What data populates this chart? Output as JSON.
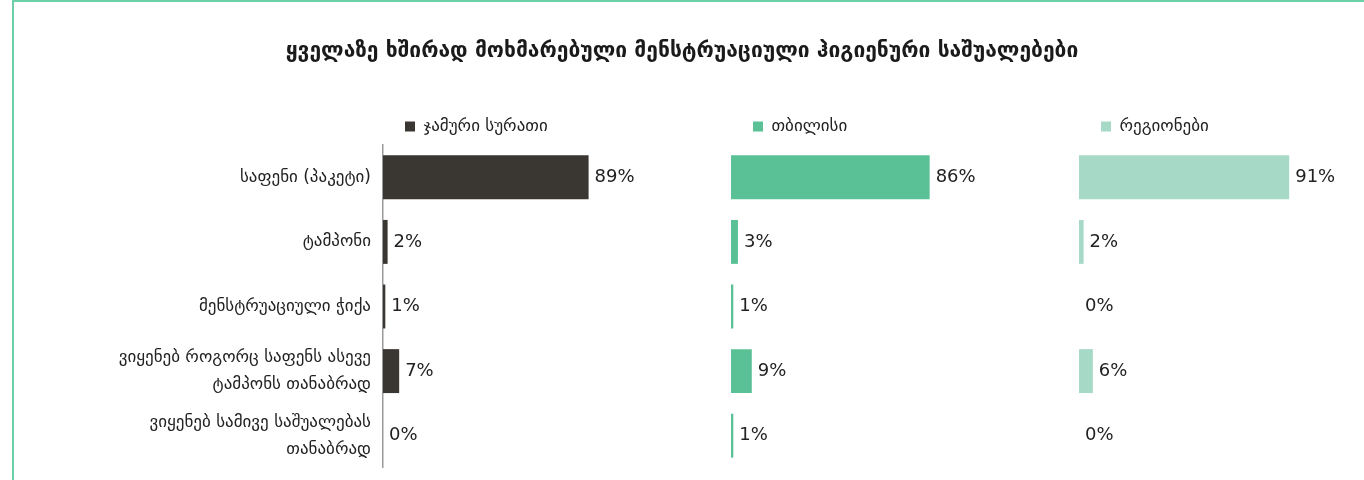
{
  "chart_data": [
    {
      "type": "bar",
      "orientation": "horizontal",
      "title": "ყველაზე ხშირად მოხმარებული  მენსტრუაციული ჰიგიენური საშუალებები",
      "categories": [
        "საფენი (პაკეტი)",
        "ტამპონი",
        "მენსტრუაციული ჭიქა",
        "ვიყენებ როგორც საფენს ასევე ტამპონს თანაბრად",
        "ვიყენებ სამივე საშუალებას თანაბრად"
      ],
      "series": [
        {
          "name": "ჯამური სურათი",
          "color": "#3a3632",
          "values": [
            89,
            2,
            1,
            7,
            0
          ],
          "value_labels": [
            "89%",
            "2%",
            "1%",
            "7%",
            "0%"
          ]
        }
      ],
      "legend": "top left",
      "tick_labels": "y"
    },
    {
      "type": "bar",
      "orientation": "horizontal",
      "categories": [
        null,
        null,
        null,
        null,
        null
      ],
      "series": [
        {
          "name": "თბილისი",
          "color": "#5ac196",
          "values": [
            86,
            3,
            1,
            9,
            1
          ],
          "value_labels": [
            "86%",
            "3%",
            "1%",
            "9%",
            "1%"
          ]
        }
      ],
      "legend": "top left",
      "tick_labels": false
    },
    {
      "type": "bar",
      "orientation": "horizontal",
      "categories": [
        null,
        null,
        null,
        null,
        null
      ],
      "series": [
        {
          "name": "რეგიონები",
          "color": "#a7d9c7",
          "values": [
            91,
            2,
            0,
            6,
            0
          ],
          "value_labels": [
            "91%",
            "2%",
            "0%",
            "6%",
            "0%"
          ]
        }
      ],
      "legend": "top left",
      "tick_labels": false
    }
  ]
}
